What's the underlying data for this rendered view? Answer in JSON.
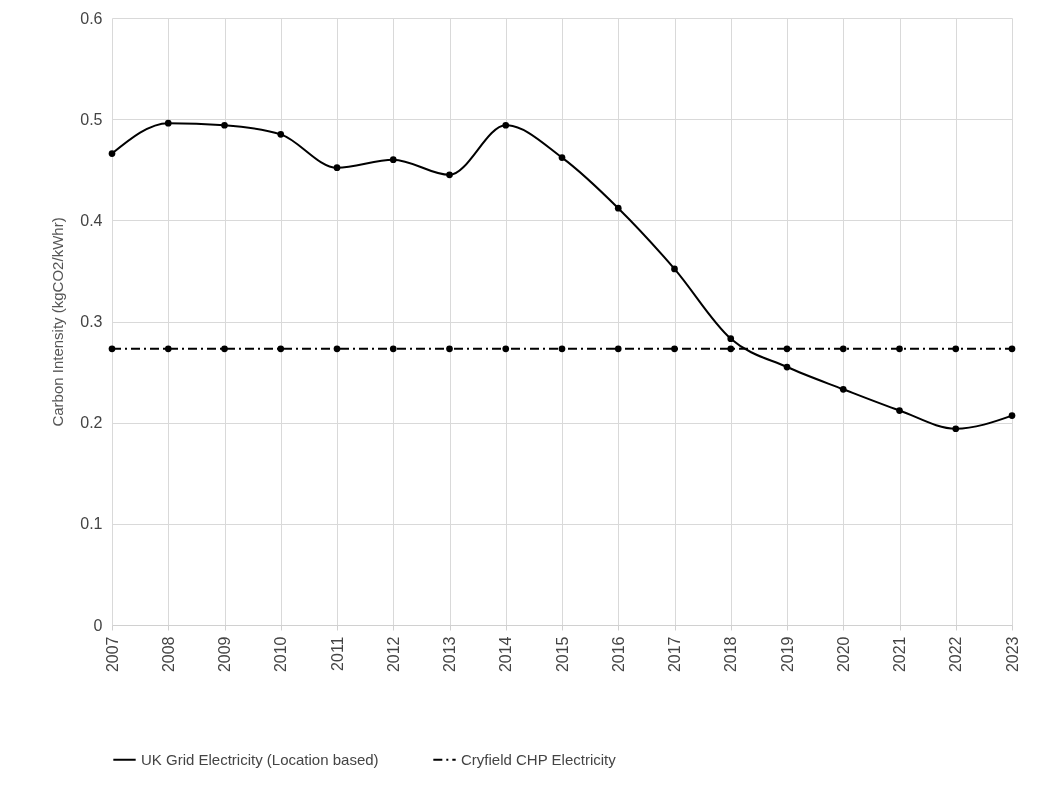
{
  "chart_data": {
    "type": "line",
    "ylabel": "Carbon Intensity (kgCO2/kWhr)",
    "categories": [
      "2007",
      "2008",
      "2009",
      "2010",
      "2011",
      "2012",
      "2013",
      "2014",
      "2015",
      "2016",
      "2017",
      "2018",
      "2019",
      "2020",
      "2021",
      "2022",
      "2023"
    ],
    "series": [
      {
        "name": "UK Grid Electricity (Location based)",
        "color": "#000000",
        "line_style": "solid",
        "values": [
          0.466,
          0.496,
          0.494,
          0.485,
          0.452,
          0.46,
          0.445,
          0.494,
          0.462,
          0.412,
          0.352,
          0.283,
          0.255,
          0.233,
          0.212,
          0.194,
          0.207
        ]
      },
      {
        "name": "Cryfield CHP Electricity",
        "color": "#000000",
        "line_style": "dashed",
        "values": [
          0.273,
          0.273,
          0.273,
          0.273,
          0.273,
          0.273,
          0.273,
          0.273,
          0.273,
          0.273,
          0.273,
          0.273,
          0.273,
          0.273,
          0.273,
          0.273,
          0.273
        ]
      }
    ],
    "ylim": [
      0,
      0.6
    ],
    "yticks": [
      0,
      0.1,
      0.2,
      0.3,
      0.4,
      0.5,
      0.6
    ],
    "grid": true,
    "legend": "bottom",
    "marker": "circle"
  }
}
